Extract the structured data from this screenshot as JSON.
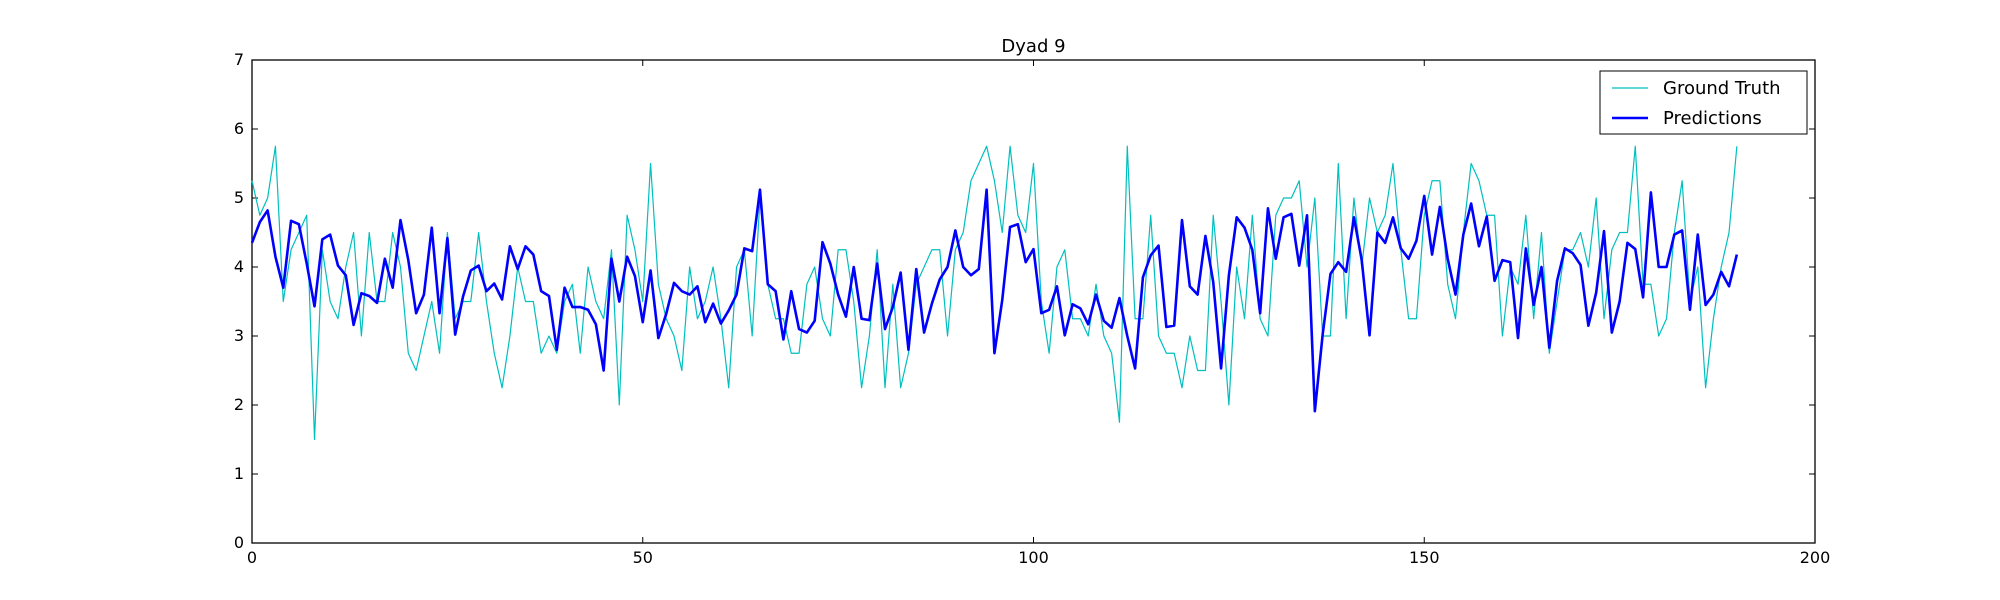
{
  "chart_data": {
    "type": "line",
    "title": "Dyad 9",
    "xlabel": "",
    "ylabel": "",
    "xlim": [
      0,
      200
    ],
    "ylim": [
      0,
      7
    ],
    "xticks": [
      0,
      50,
      100,
      150,
      200
    ],
    "yticks": [
      0,
      1,
      2,
      3,
      4,
      5,
      6,
      7
    ],
    "grid": false,
    "legend_position": "top-right",
    "x": [
      0,
      1,
      2,
      3,
      4,
      5,
      6,
      7,
      8,
      9,
      10,
      11,
      12,
      13,
      14,
      15,
      16,
      17,
      18,
      19,
      20,
      21,
      22,
      23,
      24,
      25,
      26,
      27,
      28,
      29,
      30,
      31,
      32,
      33,
      34,
      35,
      36,
      37,
      38,
      39,
      40,
      41,
      42,
      43,
      44,
      45,
      46,
      47,
      48,
      49,
      50,
      51,
      52,
      53,
      54,
      55,
      56,
      57,
      58,
      59,
      60,
      61,
      62,
      63,
      64,
      65,
      66,
      67,
      68,
      69,
      70,
      71,
      72,
      73,
      74,
      75,
      76,
      77,
      78,
      79,
      80,
      81,
      82,
      83,
      84,
      85,
      86,
      87,
      88,
      89,
      90,
      91,
      92,
      93,
      94,
      95,
      96,
      97,
      98,
      99,
      100,
      101,
      102,
      103,
      104,
      105,
      106,
      107,
      108,
      109,
      110,
      111,
      112,
      113,
      114,
      115,
      116,
      117,
      118,
      119,
      120,
      121,
      122,
      123,
      124,
      125,
      126,
      127,
      128,
      129,
      130,
      131,
      132,
      133,
      134,
      135,
      136,
      137,
      138,
      139,
      140,
      141,
      142,
      143,
      144,
      145,
      146,
      147,
      148,
      149,
      150,
      151,
      152,
      153,
      154,
      155,
      156,
      157,
      158,
      159,
      160,
      161,
      162,
      163,
      164,
      165,
      166,
      167,
      168,
      169,
      170,
      171,
      172,
      173,
      174,
      175,
      176,
      177,
      178,
      179,
      180,
      181,
      182,
      183,
      184,
      185,
      186,
      187,
      188,
      189,
      190
    ],
    "series": [
      {
        "name": "Ground Truth",
        "color": "#00bfbf",
        "line_width": 1.2,
        "values": [
          5.25,
          4.75,
          5.0,
          5.75,
          3.5,
          4.25,
          4.5,
          4.75,
          1.5,
          4.25,
          3.5,
          3.25,
          4.0,
          4.5,
          3.0,
          4.5,
          3.5,
          3.5,
          4.5,
          4.0,
          2.75,
          2.5,
          3.0,
          3.5,
          2.75,
          4.5,
          3.25,
          3.5,
          3.5,
          4.5,
          3.5,
          2.75,
          2.25,
          3.0,
          4.0,
          3.5,
          3.5,
          2.75,
          3.0,
          2.75,
          3.5,
          3.75,
          2.75,
          4.0,
          3.5,
          3.25,
          4.25,
          2.0,
          4.75,
          4.25,
          3.5,
          5.5,
          3.75,
          3.25,
          3.0,
          2.5,
          4.0,
          3.25,
          3.5,
          4.0,
          3.25,
          2.25,
          4.0,
          4.25,
          3.0,
          5.0,
          3.75,
          3.25,
          3.25,
          2.75,
          2.75,
          3.75,
          4.0,
          3.25,
          3.0,
          4.25,
          4.25,
          3.5,
          2.25,
          3.0,
          4.25,
          2.25,
          3.75,
          2.25,
          2.75,
          3.75,
          4.0,
          4.25,
          4.25,
          3.0,
          4.25,
          4.5,
          5.25,
          5.5,
          5.75,
          5.25,
          4.5,
          5.75,
          4.75,
          4.5,
          5.5,
          3.5,
          2.75,
          4.0,
          4.25,
          3.25,
          3.25,
          3.0,
          3.75,
          3.0,
          2.75,
          1.75,
          5.75,
          3.25,
          3.25,
          4.75,
          3.0,
          2.75,
          2.75,
          2.25,
          3.0,
          2.5,
          2.5,
          4.75,
          3.5,
          2.0,
          4.0,
          3.25,
          4.75,
          3.25,
          3.0,
          4.75,
          5.0,
          5.0,
          5.25,
          4.0,
          5.0,
          3.0,
          3.0,
          5.5,
          3.25,
          5.0,
          4.0,
          5.0,
          4.5,
          4.75,
          5.5,
          4.25,
          3.25,
          3.25,
          4.75,
          5.25,
          5.25,
          3.75,
          3.25,
          4.5,
          5.5,
          5.25,
          4.75,
          4.75,
          3.0,
          4.0,
          3.75,
          4.75,
          3.25,
          4.5,
          2.75,
          3.5,
          4.25,
          4.25,
          4.5,
          4.0,
          5.0,
          3.25,
          4.25,
          4.5,
          4.5,
          5.75,
          3.75,
          3.75,
          3.0,
          3.25,
          4.5,
          5.25,
          3.5,
          4.0,
          2.25,
          3.25,
          4.0,
          4.5,
          5.75
        ]
      },
      {
        "name": "Predictions",
        "color": "#0000ff",
        "line_width": 2.6,
        "values": [
          4.35,
          4.65,
          4.82,
          4.15,
          3.7,
          4.67,
          4.62,
          4.05,
          3.43,
          4.4,
          4.47,
          4.02,
          3.88,
          3.16,
          3.62,
          3.58,
          3.48,
          4.12,
          3.7,
          4.68,
          4.1,
          3.33,
          3.6,
          4.57,
          3.33,
          4.42,
          3.02,
          3.57,
          3.95,
          4.02,
          3.65,
          3.76,
          3.53,
          4.3,
          3.97,
          4.3,
          4.18,
          3.65,
          3.58,
          2.8,
          3.7,
          3.42,
          3.42,
          3.38,
          3.17,
          2.5,
          4.12,
          3.5,
          4.15,
          3.87,
          3.2,
          3.95,
          2.97,
          3.32,
          3.77,
          3.65,
          3.6,
          3.72,
          3.2,
          3.47,
          3.18,
          3.37,
          3.6,
          4.27,
          4.23,
          5.12,
          3.75,
          3.65,
          2.95,
          3.65,
          3.1,
          3.05,
          3.22,
          4.36,
          4.05,
          3.6,
          3.28,
          4.0,
          3.25,
          3.23,
          4.05,
          3.1,
          3.42,
          3.92,
          2.8,
          3.97,
          3.05,
          3.47,
          3.82,
          4.0,
          4.53,
          4.0,
          3.88,
          3.97,
          5.12,
          2.75,
          3.52,
          4.58,
          4.62,
          4.07,
          4.26,
          3.33,
          3.38,
          3.72,
          3.01,
          3.46,
          3.4,
          3.17,
          3.6,
          3.22,
          3.12,
          3.55,
          3.0,
          2.53,
          3.85,
          4.17,
          4.31,
          3.13,
          3.15,
          4.68,
          3.72,
          3.6,
          4.45,
          3.78,
          2.53,
          3.88,
          4.72,
          4.57,
          4.25,
          3.33,
          4.85,
          4.12,
          4.72,
          4.77,
          4.02,
          4.75,
          1.91,
          3.02,
          3.9,
          4.07,
          3.93,
          4.72,
          4.1,
          3.01,
          4.5,
          4.35,
          4.72,
          4.27,
          4.12,
          4.38,
          5.03,
          4.18,
          4.87,
          4.12,
          3.6,
          4.47,
          4.92,
          4.3,
          4.73,
          3.8,
          4.1,
          4.07,
          2.97,
          4.27,
          3.45,
          4.0,
          2.83,
          3.8,
          4.27,
          4.2,
          4.03,
          3.15,
          3.63,
          4.52,
          3.05,
          3.5,
          4.35,
          4.26,
          3.56,
          5.08,
          4.0,
          4.0,
          4.47,
          4.53,
          3.38,
          4.47,
          3.45,
          3.6,
          3.93,
          3.72,
          4.18
        ]
      }
    ]
  }
}
